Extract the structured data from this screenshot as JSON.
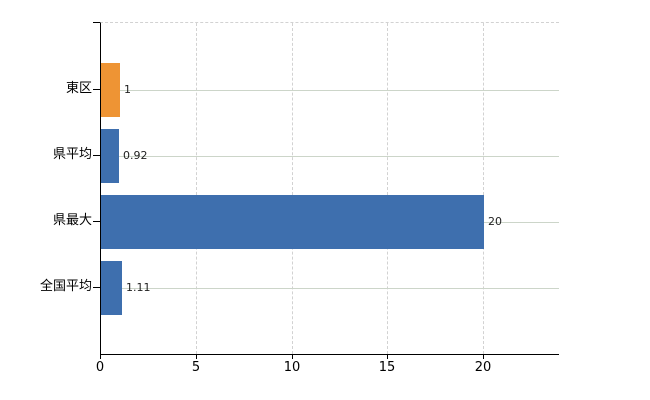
{
  "chart_data": {
    "type": "bar",
    "orientation": "horizontal",
    "title": "",
    "xlabel": "",
    "ylabel": "",
    "categories": [
      "東区",
      "県平均",
      "県最大",
      "全国平均"
    ],
    "rows": [
      {
        "label": "東区",
        "value": 1,
        "value_label": "1",
        "color": "#ee9434"
      },
      {
        "label": "県平均",
        "value": 0.92,
        "value_label": "0.92",
        "color": "#3e6fae"
      },
      {
        "label": "県最大",
        "value": 20,
        "value_label": "20",
        "color": "#3e6fae"
      },
      {
        "label": "全国平均",
        "value": 1.11,
        "value_label": "1.11",
        "color": "#3e6fae"
      }
    ],
    "xlim": [
      0,
      23.9
    ],
    "xticks": [
      0,
      5,
      10,
      15,
      20
    ],
    "xtick_labels": [
      "0",
      "5",
      "10",
      "15",
      "20"
    ],
    "grid": true,
    "legend_position": "none",
    "colors": {
      "highlight_bar": "#ee9434",
      "default_bar": "#3e6fae",
      "horizontal_grid": "#ccd5c9",
      "vertical_grid": "#d2d2d2",
      "axis": "#000000",
      "background": "#ffffff",
      "value_label_text": "#1f1f1f"
    }
  }
}
